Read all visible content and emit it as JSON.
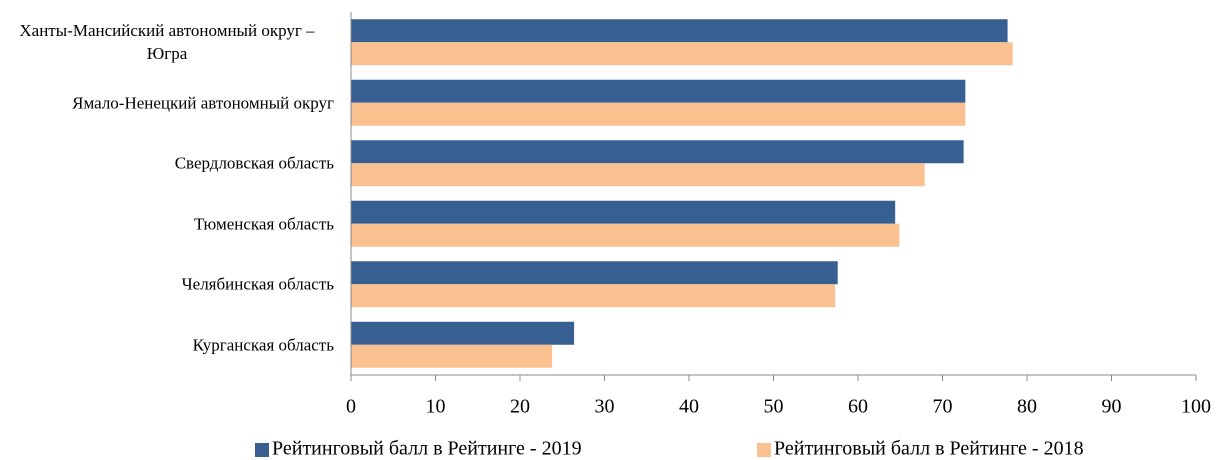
{
  "chart_data": {
    "type": "hbar",
    "categories": [
      "Ханты-Мансийский автономный округ – Югра",
      "Ямало-Ненецкий автономный округ",
      "Свердловская область",
      "Тюменская область",
      "Челябинская область",
      "Курганская область"
    ],
    "series": [
      {
        "name": "Рейтинговый балл в Рейтинге - 2019",
        "color": "#375f92",
        "values": [
          77.7,
          72.7,
          72.5,
          64.4,
          57.6,
          26.4
        ]
      },
      {
        "name": "Рейтинговый балл в Рейтинге - 2018",
        "color": "#fac090",
        "values": [
          78.3,
          72.7,
          67.9,
          64.9,
          57.3,
          23.8
        ]
      }
    ],
    "xlim": [
      0,
      100
    ],
    "xticks": [
      0,
      10,
      20,
      30,
      40,
      50,
      60,
      70,
      80,
      90,
      100
    ],
    "grid": false,
    "legend": "bottom"
  }
}
